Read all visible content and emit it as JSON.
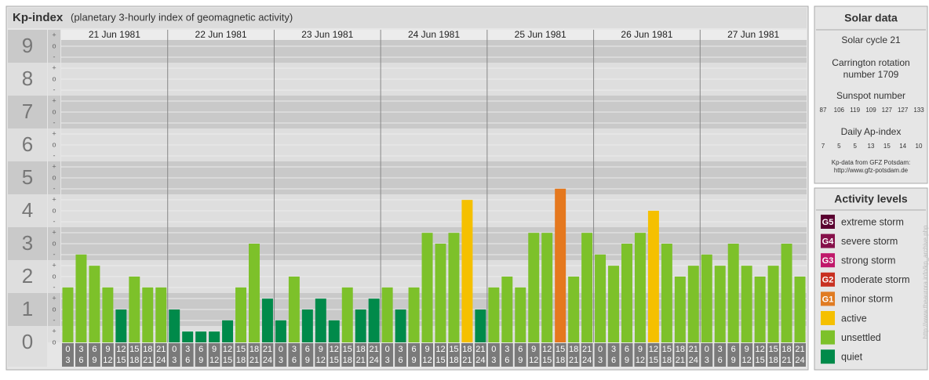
{
  "chart_data": {
    "type": "bar",
    "title": "Kp-index",
    "subtitle": "(planetary 3-hourly index of geomagnetic activity)",
    "days": [
      "21 Jun 1981",
      "22 Jun 1981",
      "23 Jun 1981",
      "24 Jun 1981",
      "25 Jun 1981",
      "26 Jun 1981",
      "27 Jun 1981"
    ],
    "hour_start": [
      "0",
      "3",
      "6",
      "9",
      "12",
      "15",
      "18",
      "21"
    ],
    "hour_end": [
      "3",
      "6",
      "9",
      "12",
      "15",
      "18",
      "21",
      "24"
    ],
    "values": [
      1.67,
      2.67,
      2.33,
      1.67,
      1,
      2,
      1.67,
      1.67,
      1,
      0.33,
      0.33,
      0.33,
      0.67,
      1.67,
      3,
      1.33,
      0.67,
      2,
      1,
      1.33,
      0.67,
      1.67,
      1,
      1.33,
      1.67,
      1,
      1.67,
      3.33,
      3,
      3.33,
      4.33,
      1,
      1.67,
      2,
      1.67,
      3.33,
      3.33,
      4.67,
      2,
      3.33,
      2.67,
      2.33,
      3,
      3.33,
      4,
      3,
      2,
      2.33,
      2.67,
      2.33,
      3,
      2.33,
      2,
      2.33,
      3,
      2
    ],
    "colors": [
      "#7dc12a",
      "#7dc12a",
      "#7dc12a",
      "#7dc12a",
      "#008a4a",
      "#7dc12a",
      "#7dc12a",
      "#7dc12a",
      "#008a4a",
      "#008a4a",
      "#008a4a",
      "#008a4a",
      "#008a4a",
      "#7dc12a",
      "#7dc12a",
      "#008a4a",
      "#008a4a",
      "#7dc12a",
      "#008a4a",
      "#008a4a",
      "#008a4a",
      "#7dc12a",
      "#008a4a",
      "#008a4a",
      "#7dc12a",
      "#008a4a",
      "#7dc12a",
      "#7dc12a",
      "#7dc12a",
      "#7dc12a",
      "#f5c000",
      "#008a4a",
      "#7dc12a",
      "#7dc12a",
      "#7dc12a",
      "#7dc12a",
      "#7dc12a",
      "#e5781e",
      "#7dc12a",
      "#7dc12a",
      "#7dc12a",
      "#7dc12a",
      "#7dc12a",
      "#7dc12a",
      "#f5c000",
      "#7dc12a",
      "#7dc12a",
      "#7dc12a",
      "#7dc12a",
      "#7dc12a",
      "#7dc12a",
      "#7dc12a",
      "#7dc12a",
      "#7dc12a",
      "#7dc12a",
      "#7dc12a"
    ],
    "ylim": [
      0,
      9.5
    ],
    "yticks": [
      0,
      1,
      2,
      3,
      4,
      5,
      6,
      7,
      8,
      9
    ],
    "minor_labels": [
      "-",
      "o",
      "+"
    ]
  },
  "solar_data": {
    "title": "Solar data",
    "cycle": "Solar cycle 21",
    "carrington_line1": "Carrington rotation",
    "carrington_line2": "number 1709",
    "sunspot_title": "Sunspot number",
    "sunspot": [
      87,
      106,
      119,
      109,
      127,
      127,
      133
    ],
    "ap_title": "Daily Ap-index",
    "ap": [
      7,
      5,
      5,
      13,
      15,
      14,
      10
    ],
    "source1": "Kp-data from GFZ Potsdam:",
    "source2": "http://www.gfz-potsdam.de"
  },
  "legend": {
    "title": "Activity levels",
    "items": [
      {
        "badge": "G5",
        "label": "extreme storm",
        "color": "#5a0030"
      },
      {
        "badge": "G4",
        "label": "severe storm",
        "color": "#86104a"
      },
      {
        "badge": "G3",
        "label": "strong storm",
        "color": "#c0186a"
      },
      {
        "badge": "G2",
        "label": "moderate storm",
        "color": "#c83020"
      },
      {
        "badge": "G1",
        "label": "minor storm",
        "color": "#e07b22"
      },
      {
        "label": "active",
        "color": "#f5c000"
      },
      {
        "label": "unsettled",
        "color": "#7dc12a"
      },
      {
        "label": "quiet",
        "color": "#008a4a"
      }
    ]
  },
  "side_url": "http://www.theaurora.info/kp_archive.php"
}
